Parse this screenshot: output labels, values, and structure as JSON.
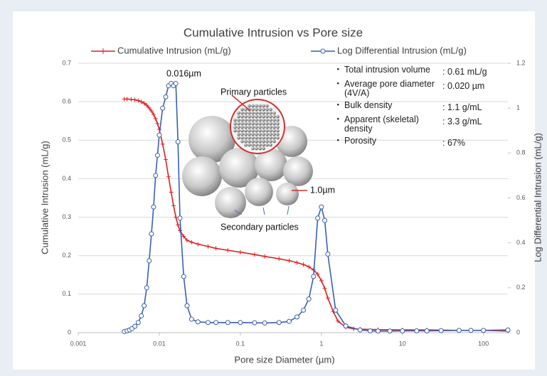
{
  "chart_data": {
    "type": "line",
    "title": "Cumulative Intrusion vs Pore size",
    "x_label": "Pore size Diameter (µm)",
    "y_label": "Cumulative Intrusion (mL/g)",
    "y2_label": "Log Differential Intrusion (mL/g)",
    "xscale": "log",
    "xlim": [
      0.001,
      200
    ],
    "xticks": [
      0.001,
      0.01,
      0.1,
      1,
      10,
      100
    ],
    "ylim": [
      0,
      0.7
    ],
    "yticks": [
      0,
      0.1,
      0.2,
      0.3,
      0.4,
      0.5,
      0.6,
      0.7
    ],
    "y2lim": [
      0,
      1.2
    ],
    "y2ticks": [
      0,
      0.2,
      0.4,
      0.6,
      0.8,
      1,
      1.2
    ],
    "grid": true,
    "series": [
      {
        "name": "Cumulative Intrusion (mL/g)",
        "color": "#e02020",
        "marker": "plus",
        "x": [
          0.0037,
          0.004,
          0.0045,
          0.005,
          0.0055,
          0.006,
          0.0065,
          0.007,
          0.0075,
          0.008,
          0.0085,
          0.009,
          0.0095,
          0.01,
          0.011,
          0.012,
          0.013,
          0.014,
          0.015,
          0.016,
          0.017,
          0.018,
          0.02,
          0.022,
          0.025,
          0.03,
          0.04,
          0.05,
          0.07,
          0.1,
          0.15,
          0.2,
          0.3,
          0.4,
          0.5,
          0.6,
          0.7,
          0.8,
          0.9,
          1.0,
          1.1,
          1.2,
          1.4,
          1.6,
          2,
          2.5,
          3,
          5,
          10,
          20,
          50,
          100,
          200
        ],
        "values": [
          0.607,
          0.607,
          0.606,
          0.605,
          0.603,
          0.6,
          0.596,
          0.591,
          0.584,
          0.576,
          0.567,
          0.556,
          0.543,
          0.528,
          0.49,
          0.45,
          0.405,
          0.365,
          0.33,
          0.3,
          0.28,
          0.265,
          0.25,
          0.24,
          0.235,
          0.23,
          0.224,
          0.219,
          0.214,
          0.209,
          0.203,
          0.198,
          0.192,
          0.187,
          0.182,
          0.177,
          0.171,
          0.163,
          0.152,
          0.135,
          0.115,
          0.09,
          0.055,
          0.03,
          0.014,
          0.01,
          0.009,
          0.008,
          0.007,
          0.007,
          0.006,
          0.006,
          0.004
        ]
      },
      {
        "name": "Log Differential Intrusion (mL/g)",
        "color": "#3a5fb0",
        "marker": "circle",
        "axis": "y2",
        "x": [
          0.0037,
          0.004,
          0.0043,
          0.0046,
          0.005,
          0.0055,
          0.006,
          0.0065,
          0.007,
          0.0075,
          0.008,
          0.0085,
          0.009,
          0.0095,
          0.01,
          0.011,
          0.012,
          0.013,
          0.014,
          0.015,
          0.016,
          0.017,
          0.018,
          0.02,
          0.022,
          0.025,
          0.03,
          0.04,
          0.05,
          0.07,
          0.1,
          0.15,
          0.2,
          0.3,
          0.4,
          0.5,
          0.6,
          0.7,
          0.8,
          0.9,
          1.0,
          1.1,
          1.2,
          1.5,
          2,
          3,
          4,
          5,
          7,
          10,
          15,
          20,
          30,
          50,
          70,
          100,
          200
        ],
        "values": [
          0.005,
          0.008,
          0.012,
          0.018,
          0.028,
          0.045,
          0.075,
          0.12,
          0.2,
          0.32,
          0.44,
          0.56,
          0.7,
          0.79,
          0.88,
          1.0,
          1.05,
          1.1,
          1.11,
          1.1,
          1.11,
          0.85,
          0.51,
          0.25,
          0.12,
          0.06,
          0.048,
          0.045,
          0.045,
          0.045,
          0.045,
          0.044,
          0.043,
          0.045,
          0.05,
          0.07,
          0.1,
          0.15,
          0.25,
          0.51,
          0.56,
          0.5,
          0.35,
          0.1,
          0.03,
          0.012,
          0.008,
          0.007,
          0.007,
          0.008,
          0.008,
          0.008,
          0.009,
          0.01,
          0.01,
          0.01,
          0.012
        ]
      }
    ],
    "annotations": [
      "0.016µm",
      "Primary particles",
      "1.0µm",
      "Secondary particles"
    ],
    "properties": [
      {
        "label": "Total intrusion volume",
        "value": ": 0.61 mL/g"
      },
      {
        "label": "Average pore diameter (4V/A)",
        "value": ": 0.020 µm"
      },
      {
        "label": "Bulk density",
        "value": ": 1.1 g/mL"
      },
      {
        "label": "Apparent (skeletal) density",
        "value": ": 3.3 g/mL"
      },
      {
        "label": "Porosity",
        "value": ": 67%"
      }
    ]
  }
}
